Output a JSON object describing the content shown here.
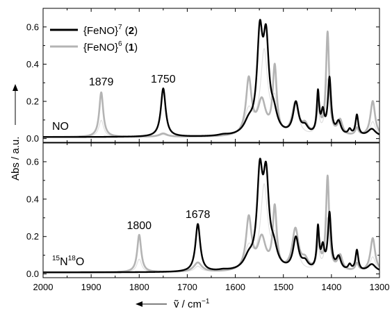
{
  "chart_data": {
    "type": "line",
    "xlabel": "ṽ / cm",
    "xlabel_sup": "−1",
    "ylabel": "Abs / a.u.",
    "xlim": [
      2000,
      1300
    ],
    "x_reversed": true,
    "x_ticks": [
      "2000",
      "1900",
      "1800",
      "1700",
      "1600",
      "1500",
      "1400",
      "1300"
    ],
    "grid": false,
    "legend": {
      "placement": "top-left",
      "entries": [
        {
          "text": "{FeNO}",
          "sup": "7",
          "suffix_open": " (",
          "bold": "2",
          "suffix_close": ")",
          "color": "#000000"
        },
        {
          "text": "{FeNO}",
          "sup": "6",
          "suffix_open": " (",
          "bold": "1",
          "suffix_close": ")",
          "color": "#b4b4b4"
        }
      ]
    },
    "panels": [
      {
        "label_parts": [
          "NO"
        ],
        "ylim": [
          -0.02,
          0.7
        ],
        "y_ticks": [
          "0.0",
          "0.2",
          "0.4",
          "0.6"
        ],
        "annotations": [
          {
            "text": "1879",
            "x": 1879,
            "y": 0.285
          },
          {
            "text": "1750",
            "x": 1750,
            "y": 0.3
          }
        ],
        "series": [
          {
            "name": "{FeNO}7 (2)",
            "color": "#000000",
            "baseline": 0.008,
            "peaks": [
              [
                1750,
                0.26,
                6
              ],
              [
                1625,
                0.006,
                12
              ],
              [
                1572,
                0.06,
                12
              ],
              [
                1549,
                0.5,
                7
              ],
              [
                1536,
                0.46,
                7
              ],
              [
                1520,
                0.09,
                9
              ],
              [
                1474,
                0.17,
                7
              ],
              [
                1455,
                0.04,
                8
              ],
              [
                1428,
                0.22,
                3
              ],
              [
                1418,
                0.11,
                4
              ],
              [
                1404,
                0.3,
                4
              ],
              [
                1385,
                0.07,
                6
              ],
              [
                1362,
                0.03,
                4
              ],
              [
                1347,
                0.11,
                3.5
              ],
              [
                1316,
                0.04,
                10
              ]
            ]
          },
          {
            "name": "{FeNO}6 (1)",
            "color": "#b4b4b4",
            "baseline": 0.008,
            "peaks": [
              [
                1879,
                0.24,
                5
              ],
              [
                1750,
                0.018,
                10
              ],
              [
                1572,
                0.3,
                7
              ],
              [
                1545,
                0.18,
                10
              ],
              [
                1518,
                0.36,
                5
              ],
              [
                1475,
                0.17,
                8
              ],
              [
                1455,
                0.05,
                8
              ],
              [
                1427,
                0.16,
                4
              ],
              [
                1408,
                0.55,
                4
              ],
              [
                1382,
                0.08,
                6
              ],
              [
                1347,
                0.04,
                4
              ],
              [
                1314,
                0.19,
                6
              ]
            ]
          },
          {
            "name": "",
            "color": "#e0e0e0",
            "baseline": 0.008,
            "peaks": [
              [
                1879,
                0.09,
                6
              ],
              [
                1750,
                0.012,
                8
              ],
              [
                1572,
                0.13,
                10
              ],
              [
                1540,
                0.45,
                9
              ],
              [
                1518,
                0.16,
                6
              ],
              [
                1475,
                0.17,
                8
              ],
              [
                1428,
                0.12,
                4
              ],
              [
                1408,
                0.3,
                5
              ],
              [
                1385,
                0.06,
                6
              ],
              [
                1347,
                0.06,
                4
              ],
              [
                1314,
                0.08,
                7
              ]
            ]
          }
        ]
      },
      {
        "label_parts": [
          "15",
          "N",
          "18",
          "O"
        ],
        "ylim": [
          -0.02,
          0.7
        ],
        "y_ticks": [
          "0.0",
          "0.2",
          "0.4",
          "0.6"
        ],
        "annotations": [
          {
            "text": "1800",
            "x": 1800,
            "y": 0.24
          },
          {
            "text": "1678",
            "x": 1678,
            "y": 0.3
          }
        ],
        "series": [
          {
            "name": "{FeNO}7 (2)",
            "color": "#000000",
            "baseline": 0.008,
            "peaks": [
              [
                1678,
                0.255,
                6
              ],
              [
                1625,
                0.006,
                12
              ],
              [
                1572,
                0.06,
                12
              ],
              [
                1549,
                0.48,
                7
              ],
              [
                1536,
                0.45,
                7
              ],
              [
                1520,
                0.09,
                9
              ],
              [
                1474,
                0.17,
                7
              ],
              [
                1455,
                0.04,
                8
              ],
              [
                1428,
                0.22,
                3
              ],
              [
                1418,
                0.11,
                4
              ],
              [
                1404,
                0.3,
                4
              ],
              [
                1385,
                0.07,
                6
              ],
              [
                1362,
                0.03,
                4
              ],
              [
                1347,
                0.11,
                3.5
              ],
              [
                1316,
                0.04,
                10
              ]
            ]
          },
          {
            "name": "{FeNO}6 (1)",
            "color": "#b4b4b4",
            "baseline": 0.008,
            "peaks": [
              [
                1800,
                0.2,
                5
              ],
              [
                1678,
                0.05,
                10
              ],
              [
                1572,
                0.28,
                7
              ],
              [
                1545,
                0.17,
                10
              ],
              [
                1518,
                0.33,
                5
              ],
              [
                1475,
                0.22,
                8
              ],
              [
                1455,
                0.05,
                8
              ],
              [
                1427,
                0.16,
                4
              ],
              [
                1408,
                0.5,
                4
              ],
              [
                1382,
                0.08,
                6
              ],
              [
                1347,
                0.04,
                4
              ],
              [
                1314,
                0.18,
                6
              ]
            ]
          },
          {
            "name": "",
            "color": "#e0e0e0",
            "baseline": 0.008,
            "peaks": [
              [
                1800,
                0.07,
                6
              ],
              [
                1678,
                0.03,
                8
              ],
              [
                1572,
                0.12,
                10
              ],
              [
                1540,
                0.45,
                9
              ],
              [
                1518,
                0.15,
                6
              ],
              [
                1475,
                0.16,
                8
              ],
              [
                1428,
                0.12,
                4
              ],
              [
                1408,
                0.28,
                5
              ],
              [
                1385,
                0.06,
                6
              ],
              [
                1347,
                0.06,
                4
              ],
              [
                1314,
                0.08,
                7
              ]
            ]
          }
        ]
      }
    ]
  }
}
